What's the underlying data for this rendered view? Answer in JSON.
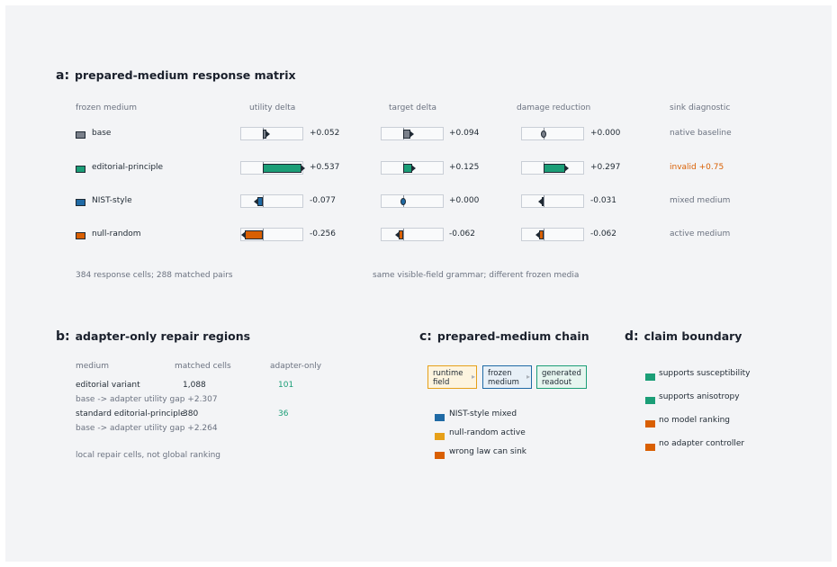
{
  "colors": {
    "base": "#7a808a",
    "editorial": "#1b9e77",
    "nist": "#1f6aa5",
    "null": "#d95f02",
    "amber": "#e6a019",
    "warn": "#d95f02"
  },
  "panel_a": {
    "letter": "a:",
    "title": "prepared-medium response matrix",
    "headers": [
      "frozen medium",
      "utility delta",
      "target delta",
      "damage reduction",
      "sink diagnostic"
    ],
    "rows": [
      {
        "name": "base",
        "color": "base",
        "utility": 0.052,
        "utility_text": "+0.052",
        "target": 0.094,
        "target_text": "+0.094",
        "damage": 0.0,
        "damage_text": "+0.000",
        "diagnostic": "native baseline",
        "warn": false
      },
      {
        "name": "editorial-principle",
        "color": "editorial",
        "utility": 0.537,
        "utility_text": "+0.537",
        "target": 0.125,
        "target_text": "+0.125",
        "damage": 0.297,
        "damage_text": "+0.297",
        "diagnostic": "invalid +0.75",
        "warn": true
      },
      {
        "name": "NIST-style",
        "color": "nist",
        "utility": -0.077,
        "utility_text": "-0.077",
        "target": 0.0,
        "target_text": "+0.000",
        "damage": -0.031,
        "damage_text": "-0.031",
        "diagnostic": "mixed medium",
        "warn": false
      },
      {
        "name": "null-random",
        "color": "null",
        "utility": -0.256,
        "utility_text": "-0.256",
        "target": -0.062,
        "target_text": "-0.062",
        "damage": -0.062,
        "damage_text": "-0.062",
        "diagnostic": "active medium",
        "warn": false
      }
    ],
    "footnote_left": "384 response cells; 288 matched pairs",
    "footnote_right": "same visible-field grammar; different frozen media"
  },
  "panel_b": {
    "letter": "b:",
    "title": "adapter-only repair regions",
    "headers": [
      "medium",
      "matched cells",
      "adapter-only"
    ],
    "rows": [
      {
        "medium": "editorial variant",
        "matched": "1,088",
        "adapter": "101",
        "gap": "base -> adapter utility gap +2.307"
      },
      {
        "medium": "standard editorial-principle",
        "matched": "380",
        "adapter": "36",
        "gap": "base -> adapter utility gap +2.264"
      }
    ],
    "footnote": "local repair cells, not global ranking"
  },
  "panel_c": {
    "letter": "c:",
    "title": "prepared-medium chain",
    "boxes": [
      {
        "line1": "runtime",
        "line2": "field"
      },
      {
        "line1": "frozen",
        "line2": "medium"
      },
      {
        "line1": "generated",
        "line2": "readout"
      }
    ],
    "arrow": "▸",
    "legend": [
      {
        "label": "NIST-style mixed",
        "color": "nist"
      },
      {
        "label": "null-random active",
        "color": "amber"
      },
      {
        "label": "wrong law can sink",
        "color": "null"
      }
    ]
  },
  "panel_d": {
    "letter": "d:",
    "title": "claim boundary",
    "items": [
      {
        "label": "supports susceptibility",
        "color": "editorial"
      },
      {
        "label": "supports anisotropy",
        "color": "editorial"
      },
      {
        "label": "no model ranking",
        "color": "null"
      },
      {
        "label": "no adapter controller",
        "color": "null"
      }
    ]
  }
}
